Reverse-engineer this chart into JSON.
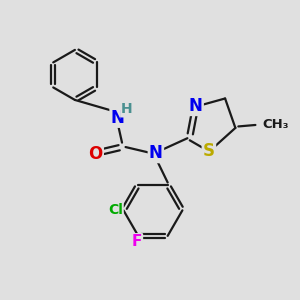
{
  "background_color": "#e0e0e0",
  "bond_color": "#1a1a1a",
  "atom_colors": {
    "N": "#0000ee",
    "H": "#4a9090",
    "O": "#dd0000",
    "S": "#bbaa00",
    "Cl": "#00aa00",
    "F": "#ee00ee",
    "C": "#1a1a1a"
  },
  "figsize": [
    3.0,
    3.0
  ],
  "dpi": 100
}
